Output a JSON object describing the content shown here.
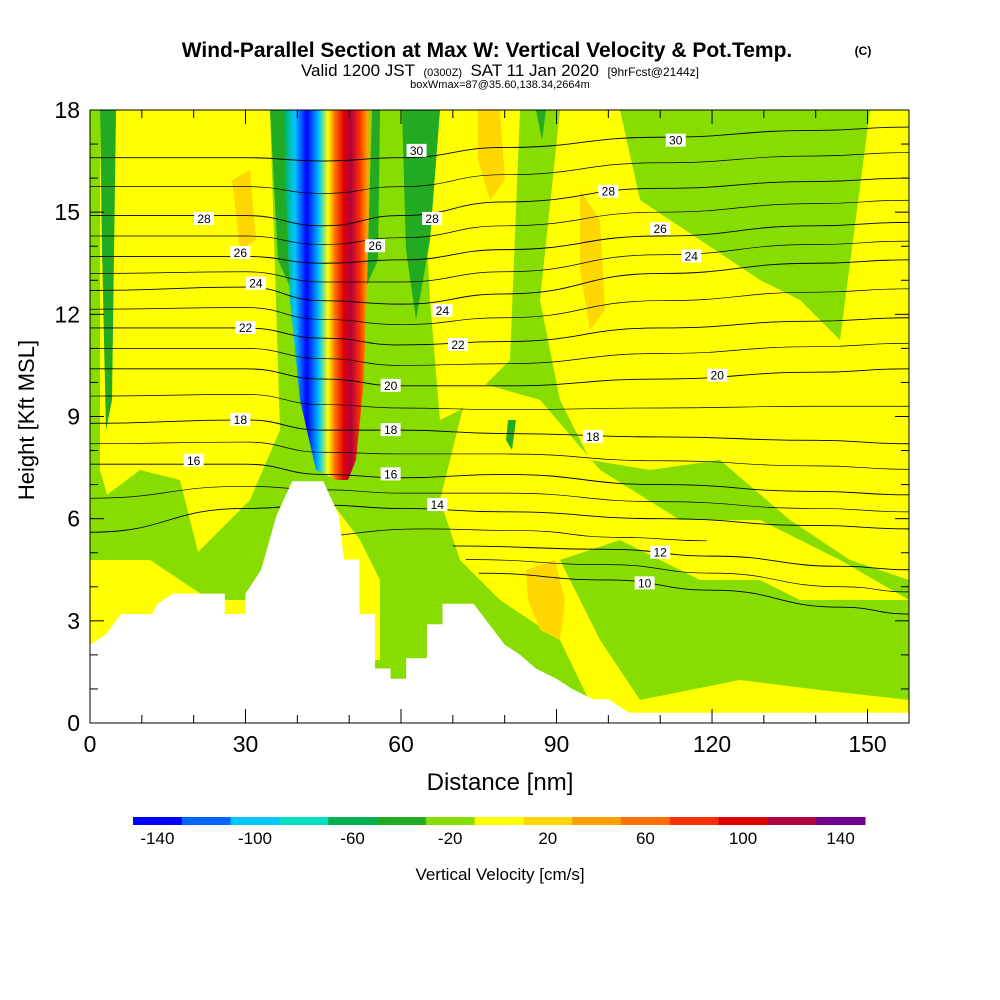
{
  "chart_data": {
    "type": "heatmap",
    "title": "Wind-Parallel Section at Max W: Vertical Velocity & Pot.Temp.",
    "title_mark": "(C)",
    "subtitle_parts": {
      "valid": "Valid 1200 JST",
      "utc": "(0300Z)",
      "date": "SAT 11 Jan 2020",
      "fcst": "[9hrFcst@2144z]"
    },
    "subtitle2": "boxWmax=87@35.60,138.34,2664m",
    "xlabel": "Distance [nm]",
    "ylabel": "Height [Kft MSL]",
    "xlim": [
      0,
      158
    ],
    "ylim": [
      0,
      18
    ],
    "x_ticks": [
      "0",
      "30",
      "60",
      "90",
      "120",
      "150"
    ],
    "y_ticks": [
      "0",
      "3",
      "6",
      "9",
      "12",
      "15",
      "18"
    ],
    "colorbar": {
      "label": "Vertical Velocity [cm/s]",
      "tick_labels": [
        "-140",
        "-100",
        "-60",
        "-20",
        "20",
        "60",
        "100",
        "140"
      ],
      "colors": [
        "#0000ff",
        "#0066ff",
        "#00c8ff",
        "#00e0c0",
        "#00b050",
        "#22aa22",
        "#88dd00",
        "#ffff00",
        "#ffd700",
        "#ffa000",
        "#ff7000",
        "#ff3000",
        "#e00000",
        "#b00040",
        "#700090"
      ]
    },
    "terrain": [
      [
        0,
        2.3
      ],
      [
        3,
        2.6
      ],
      [
        6,
        3.2
      ],
      [
        12,
        3.2
      ],
      [
        13,
        3.5
      ],
      [
        16,
        3.8
      ],
      [
        26,
        3.8
      ],
      [
        26,
        3.2
      ],
      [
        30,
        3.2
      ],
      [
        30,
        3.8
      ],
      [
        33,
        4.5
      ],
      [
        36,
        6.1
      ],
      [
        39,
        7.1
      ],
      [
        45,
        7.1
      ],
      [
        48,
        6.1
      ],
      [
        49,
        4.8
      ],
      [
        52,
        4.8
      ],
      [
        52,
        3.2
      ],
      [
        55,
        3.2
      ],
      [
        55,
        1.6
      ],
      [
        58,
        1.6
      ],
      [
        58,
        1.3
      ],
      [
        61,
        1.3
      ],
      [
        61,
        1.9
      ],
      [
        65,
        1.9
      ],
      [
        65,
        2.9
      ],
      [
        68,
        2.9
      ],
      [
        68,
        3.5
      ],
      [
        74,
        3.5
      ],
      [
        77,
        2.9
      ],
      [
        80,
        2.3
      ],
      [
        83,
        2.0
      ],
      [
        86,
        1.6
      ],
      [
        90,
        1.3
      ],
      [
        93,
        1.0
      ],
      [
        97,
        0.7
      ],
      [
        100,
        0.7
      ],
      [
        104,
        0.3
      ],
      [
        158,
        0.3
      ]
    ],
    "theta_contours": [
      {
        "label": "10",
        "points": [
          [
            75,
            4.4
          ],
          [
            100,
            4.2
          ],
          [
            120,
            3.9
          ],
          [
            145,
            3.4
          ],
          [
            158,
            3.2
          ]
        ],
        "label_at": [
          107,
          4.1
        ]
      },
      {
        "label": "12",
        "points": [
          [
            70,
            5.2
          ],
          [
            100,
            5.1
          ],
          [
            120,
            4.9
          ],
          [
            145,
            4.6
          ],
          [
            158,
            4.5
          ]
        ],
        "label_at": [
          110,
          5.0
        ]
      },
      {
        "label": "14",
        "points": [
          [
            0,
            5.6
          ],
          [
            30,
            6.3
          ],
          [
            45,
            6.4
          ],
          [
            60,
            6.3
          ],
          [
            80,
            6.2
          ],
          [
            110,
            6.0
          ],
          [
            140,
            5.8
          ],
          [
            158,
            5.7
          ]
        ],
        "label_at": [
          67,
          6.4
        ]
      },
      {
        "label": "16",
        "points": [
          [
            0,
            7.6
          ],
          [
            30,
            7.6
          ],
          [
            45,
            7.3
          ],
          [
            60,
            7.2
          ],
          [
            80,
            7.3
          ],
          [
            110,
            7.0
          ],
          [
            140,
            6.8
          ],
          [
            158,
            6.7
          ]
        ],
        "label_at": [
          58,
          7.3
        ]
      },
      {
        "label": "18",
        "points": [
          [
            0,
            8.8
          ],
          [
            30,
            8.9
          ],
          [
            45,
            8.6
          ],
          [
            60,
            8.6
          ],
          [
            80,
            8.5
          ],
          [
            110,
            8.4
          ],
          [
            140,
            8.3
          ],
          [
            158,
            8.2
          ]
        ],
        "label_at": [
          97,
          8.4
        ]
      },
      {
        "label": "20",
        "points": [
          [
            0,
            10.4
          ],
          [
            30,
            10.4
          ],
          [
            45,
            10.1
          ],
          [
            60,
            9.9
          ],
          [
            80,
            9.9
          ],
          [
            110,
            10.1
          ],
          [
            140,
            10.3
          ],
          [
            158,
            10.4
          ]
        ],
        "label_at": [
          121,
          10.2
        ]
      },
      {
        "label": "22",
        "points": [
          [
            0,
            11.6
          ],
          [
            30,
            11.6
          ],
          [
            45,
            11.3
          ],
          [
            60,
            11.1
          ],
          [
            80,
            11.2
          ],
          [
            110,
            11.6
          ],
          [
            140,
            11.8
          ],
          [
            158,
            11.9
          ]
        ],
        "label_at": [
          30,
          11.6
        ]
      },
      {
        "label": "24",
        "points": [
          [
            0,
            12.7
          ],
          [
            30,
            12.8
          ],
          [
            45,
            12.4
          ],
          [
            60,
            12.3
          ],
          [
            80,
            12.6
          ],
          [
            110,
            13.2
          ],
          [
            140,
            13.5
          ],
          [
            158,
            13.6
          ]
        ],
        "label_at": [
          116,
          13.7
        ]
      },
      {
        "label": "26",
        "points": [
          [
            0,
            13.7
          ],
          [
            30,
            13.7
          ],
          [
            45,
            13.5
          ],
          [
            60,
            13.6
          ],
          [
            80,
            13.9
          ],
          [
            110,
            14.3
          ],
          [
            140,
            14.6
          ],
          [
            158,
            14.7
          ]
        ],
        "label_at": [
          110,
          14.5
        ]
      },
      {
        "label": "28",
        "points": [
          [
            0,
            14.9
          ],
          [
            30,
            14.9
          ],
          [
            45,
            14.6
          ],
          [
            60,
            14.9
          ],
          [
            80,
            15.3
          ],
          [
            110,
            15.7
          ],
          [
            140,
            15.9
          ],
          [
            158,
            16.0
          ]
        ],
        "label_at": [
          100,
          15.6
        ]
      },
      {
        "label": "30",
        "points": [
          [
            0,
            16.6
          ],
          [
            30,
            16.6
          ],
          [
            45,
            16.5
          ],
          [
            60,
            16.6
          ],
          [
            80,
            16.9
          ],
          [
            110,
            17.2
          ],
          [
            140,
            17.4
          ],
          [
            158,
            17.5
          ]
        ],
        "label_at": [
          113,
          17.1
        ]
      }
    ],
    "extra_contour_labels": [
      {
        "label": "30",
        "at": [
          63,
          16.8
        ]
      },
      {
        "label": "28",
        "at": [
          22,
          14.8
        ]
      },
      {
        "label": "28",
        "at": [
          66,
          14.8
        ]
      },
      {
        "label": "26",
        "at": [
          29,
          13.8
        ]
      },
      {
        "label": "26",
        "at": [
          55,
          14.0
        ]
      },
      {
        "label": "24",
        "at": [
          32,
          12.9
        ]
      },
      {
        "label": "24",
        "at": [
          68,
          12.1
        ]
      },
      {
        "label": "22",
        "at": [
          71,
          11.1
        ]
      },
      {
        "label": "20",
        "at": [
          58,
          9.9
        ]
      },
      {
        "label": "18",
        "at": [
          29,
          8.9
        ]
      },
      {
        "label": "18",
        "at": [
          58,
          8.6
        ]
      },
      {
        "label": "16",
        "at": [
          20,
          7.7
        ]
      },
      {
        "label": "14",
        "at": [
          67,
          6.4
        ]
      }
    ],
    "w_field": [
      {
        "label": "updraft core",
        "x0": 43,
        "x1": 52,
        "w": 120
      },
      {
        "label": "downdraft core",
        "x0": 37,
        "x1": 44,
        "w": -120
      }
    ],
    "grid": false,
    "legend": "bottom"
  }
}
